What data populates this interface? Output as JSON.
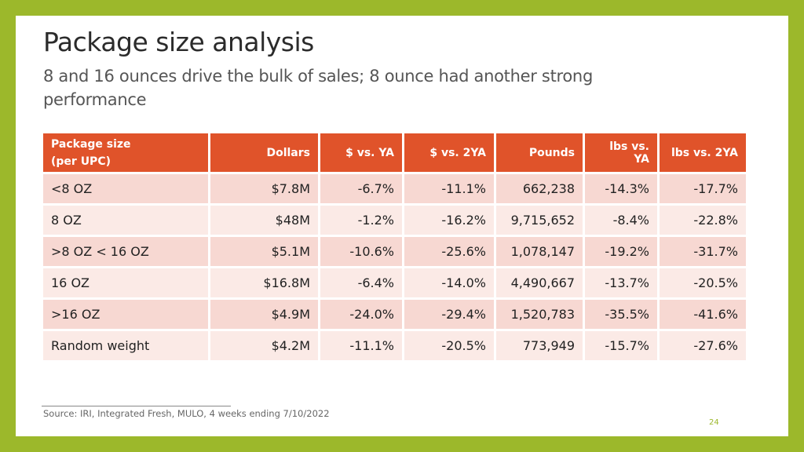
{
  "title": "Package size analysis",
  "subtitle": "8 and 16 ounces drive the bulk of sales; 8 ounce had another strong performance",
  "table": {
    "headers": {
      "package_size_line1": "Package size",
      "package_size_line2": "(per UPC)",
      "dollars": "Dollars",
      "dollars_vs_ya": "$ vs. YA",
      "dollars_vs_2ya": "$ vs. 2YA",
      "pounds": "Pounds",
      "lbs_vs_ya": "lbs vs. YA",
      "lbs_vs_2ya": "lbs vs. 2YA"
    },
    "rows": [
      {
        "size": "<8 OZ",
        "dollars": "$7.8M",
        "dollars_vs_ya": "-6.7%",
        "dollars_vs_2ya": "-11.1%",
        "pounds": "662,238",
        "lbs_vs_ya": "-14.3%",
        "lbs_vs_2ya": "-17.7%"
      },
      {
        "size": "8 OZ",
        "dollars": "$48M",
        "dollars_vs_ya": "-1.2%",
        "dollars_vs_2ya": "-16.2%",
        "pounds": "9,715,652",
        "lbs_vs_ya": "-8.4%",
        "lbs_vs_2ya": "-22.8%"
      },
      {
        "size": ">8 OZ < 16 OZ",
        "dollars": "$5.1M",
        "dollars_vs_ya": "-10.6%",
        "dollars_vs_2ya": "-25.6%",
        "pounds": "1,078,147",
        "lbs_vs_ya": "-19.2%",
        "lbs_vs_2ya": "-31.7%"
      },
      {
        "size": "16 OZ",
        "dollars": "$16.8M",
        "dollars_vs_ya": "-6.4%",
        "dollars_vs_2ya": "-14.0%",
        "pounds": "4,490,667",
        "lbs_vs_ya": "-13.7%",
        "lbs_vs_2ya": "-20.5%"
      },
      {
        "size": ">16 OZ",
        "dollars": "$4.9M",
        "dollars_vs_ya": "-24.0%",
        "dollars_vs_2ya": "-29.4%",
        "pounds": "1,520,783",
        "lbs_vs_ya": "-35.5%",
        "lbs_vs_2ya": "-41.6%"
      },
      {
        "size": "Random weight",
        "dollars": "$4.2M",
        "dollars_vs_ya": "-11.1%",
        "dollars_vs_2ya": "-20.5%",
        "pounds": "773,949",
        "lbs_vs_ya": "-15.7%",
        "lbs_vs_2ya": "-27.6%"
      }
    ]
  },
  "source": "Source: IRI, Integrated Fresh, MULO, 4 weeks ending 7/10/2022",
  "page_number": "24",
  "colors": {
    "frame": "#9cb82b",
    "header_fill": "#e0532a",
    "row_odd": "#f7d8d2",
    "row_even": "#fbeae6"
  }
}
